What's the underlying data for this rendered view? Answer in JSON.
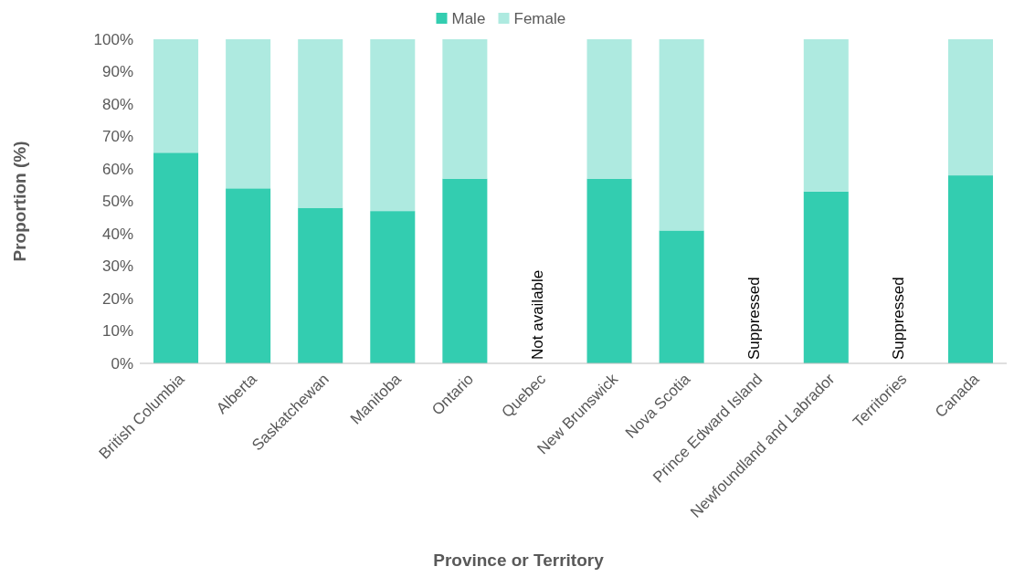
{
  "chart_data": {
    "type": "bar",
    "stacked": true,
    "xlabel": "Province or Territory",
    "ylabel": "Proportion (%)",
    "categories": [
      "British Columbia",
      "Alberta",
      "Saskatchewan",
      "Manitoba",
      "Ontario",
      "Quebec",
      "New Brunswick",
      "Nova Scotia",
      "Prince Edward Island",
      "Newfoundland and Labrador",
      "Territories",
      "Canada"
    ],
    "series": [
      {
        "name": "Male",
        "color": "#33cdb0",
        "values": [
          65,
          54,
          48,
          47,
          57,
          null,
          57,
          41,
          null,
          53,
          null,
          58
        ]
      },
      {
        "name": "Female",
        "color": "#aeeae0",
        "values": [
          35,
          46,
          52,
          53,
          43,
          null,
          43,
          59,
          null,
          47,
          null,
          42
        ]
      }
    ],
    "ylim": [
      0,
      100
    ],
    "yticks": [
      {
        "value": 0,
        "label": "0%"
      },
      {
        "value": 10,
        "label": "10%"
      },
      {
        "value": 20,
        "label": "20%"
      },
      {
        "value": 30,
        "label": "30%"
      },
      {
        "value": 40,
        "label": "40%"
      },
      {
        "value": 50,
        "label": "50%"
      },
      {
        "value": 60,
        "label": "60%"
      },
      {
        "value": 70,
        "label": "70%"
      },
      {
        "value": 80,
        "label": "80%"
      },
      {
        "value": 90,
        "label": "90%"
      },
      {
        "value": 100,
        "label": "100%"
      }
    ],
    "grid": false,
    "legend": "top",
    "annotations": [
      "Not available",
      "Suppressed",
      "Suppressed"
    ]
  }
}
